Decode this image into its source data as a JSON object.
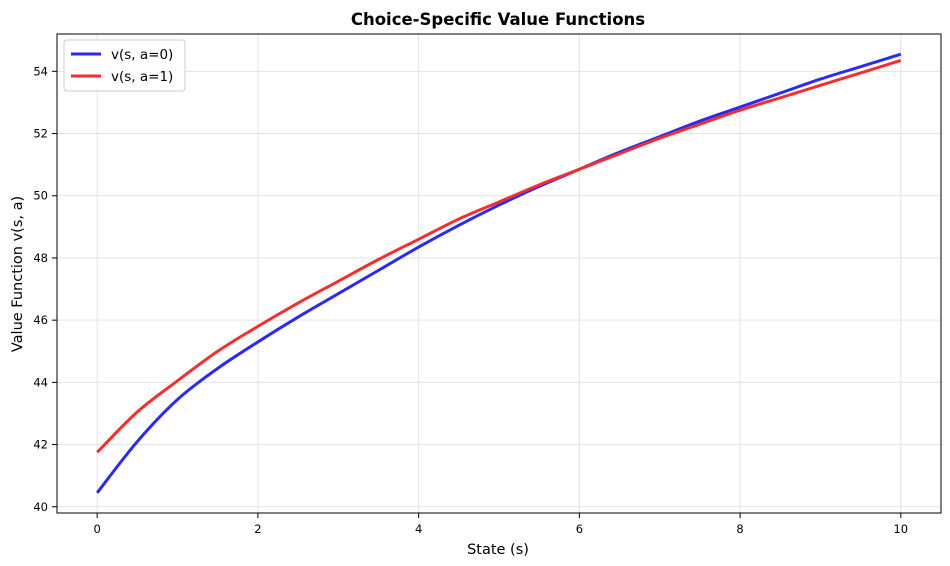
{
  "chart_data": {
    "type": "line",
    "title": "Choice-Specific Value Functions",
    "xlabel": "State (s)",
    "ylabel": "Value Function v(s, a)",
    "xlim": [
      -0.5,
      10.5
    ],
    "ylim": [
      39.8,
      55.2
    ],
    "xticks": [
      0,
      2,
      4,
      6,
      8,
      10
    ],
    "yticks": [
      40,
      42,
      44,
      46,
      48,
      50,
      52,
      54
    ],
    "grid": true,
    "legend_position": "upper left",
    "series": [
      {
        "name": "v(s, a=0)",
        "color": "#2b2bf0",
        "x": [
          0,
          0.5,
          1,
          1.5,
          2,
          2.5,
          3,
          3.5,
          4,
          4.5,
          5,
          5.5,
          6,
          6.5,
          7,
          7.5,
          8,
          8.5,
          9,
          9.5,
          10
        ],
        "y": [
          40.45,
          42.1,
          43.45,
          44.45,
          45.3,
          46.1,
          46.85,
          47.6,
          48.35,
          49.05,
          49.7,
          50.3,
          50.85,
          51.4,
          51.9,
          52.4,
          52.85,
          53.3,
          53.75,
          54.15,
          54.55
        ]
      },
      {
        "name": "v(s, a=1)",
        "color": "#f03030",
        "x": [
          0,
          0.5,
          1,
          1.5,
          2,
          2.5,
          3,
          3.5,
          4,
          4.5,
          5,
          5.5,
          6,
          6.5,
          7,
          7.5,
          8,
          8.5,
          9,
          9.5,
          10
        ],
        "y": [
          41.75,
          43.05,
          44.05,
          45.0,
          45.8,
          46.55,
          47.25,
          47.95,
          48.6,
          49.25,
          49.8,
          50.35,
          50.85,
          51.35,
          51.85,
          52.3,
          52.75,
          53.15,
          53.55,
          53.95,
          54.35
        ]
      }
    ]
  }
}
